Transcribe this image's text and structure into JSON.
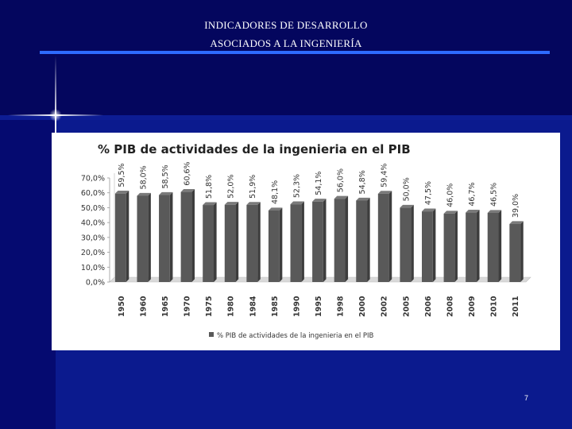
{
  "slide": {
    "title_line1": "INDICADORES DE DESARROLLO",
    "title_line2": "ASOCIADOS A LA INGENIERÍA",
    "page_number": "7"
  },
  "colors": {
    "background": "#04065e",
    "rule": "#2e6bff",
    "bar": "#595959"
  },
  "chart_data": {
    "type": "bar",
    "title": "% PIB de actividades de la ingenieria en el PIB",
    "categories": [
      "1950",
      "1960",
      "1965",
      "1970",
      "1975",
      "1980",
      "1984",
      "1985",
      "1990",
      "1995",
      "1998",
      "2000",
      "2002",
      "2005",
      "2006",
      "2008",
      "2009",
      "2010",
      "2011"
    ],
    "series": [
      {
        "name": "% PIB de actividades de la ingenieria en el PIB",
        "values": [
          59.5,
          58.0,
          58.5,
          60.6,
          51.8,
          52.0,
          51.9,
          48.1,
          52.3,
          54.1,
          56.0,
          54.8,
          59.4,
          50.0,
          47.5,
          46.0,
          46.7,
          46.5,
          39.0
        ]
      }
    ],
    "value_labels": [
      "59,5%",
      "58,0%",
      "58,5%",
      "60,6%",
      "51,8%",
      "52,0%",
      "51,9%",
      "48,1%",
      "52,3%",
      "54,1%",
      "56,0%",
      "54,8%",
      "59,4%",
      "50,0%",
      "47,5%",
      "46,0%",
      "46,7%",
      "46,5%",
      "39,0%"
    ],
    "yticks": [
      "0,0%",
      "10,0%",
      "20,0%",
      "30,0%",
      "40,0%",
      "50,0%",
      "60,0%",
      "70,0%"
    ],
    "ylim": [
      0,
      70
    ],
    "grid": false,
    "legend_position": "bottom"
  }
}
